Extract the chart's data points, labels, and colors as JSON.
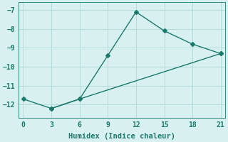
{
  "line1_x": [
    0,
    3,
    6,
    9,
    12,
    15,
    18,
    21
  ],
  "line1_y": [
    -11.7,
    -12.2,
    -11.7,
    -9.4,
    -7.1,
    -8.1,
    -8.8,
    -9.3
  ],
  "line2_x": [
    3,
    6,
    21
  ],
  "line2_y": [
    -12.2,
    -11.7,
    -9.3
  ],
  "color": "#1a7a6e",
  "bg_color": "#d8f0f0",
  "grid_color": "#b0d8d8",
  "xlabel": "Humidex (Indice chaleur)",
  "xlim": [
    -0.5,
    21.5
  ],
  "ylim": [
    -12.7,
    -6.6
  ],
  "xticks": [
    0,
    3,
    6,
    9,
    12,
    15,
    18,
    21
  ],
  "yticks": [
    -12,
    -11,
    -10,
    -9,
    -8,
    -7
  ],
  "marker": "D",
  "marker_size": 3,
  "line_width": 1.0,
  "tick_fontsize": 7,
  "label_fontsize": 7.5
}
